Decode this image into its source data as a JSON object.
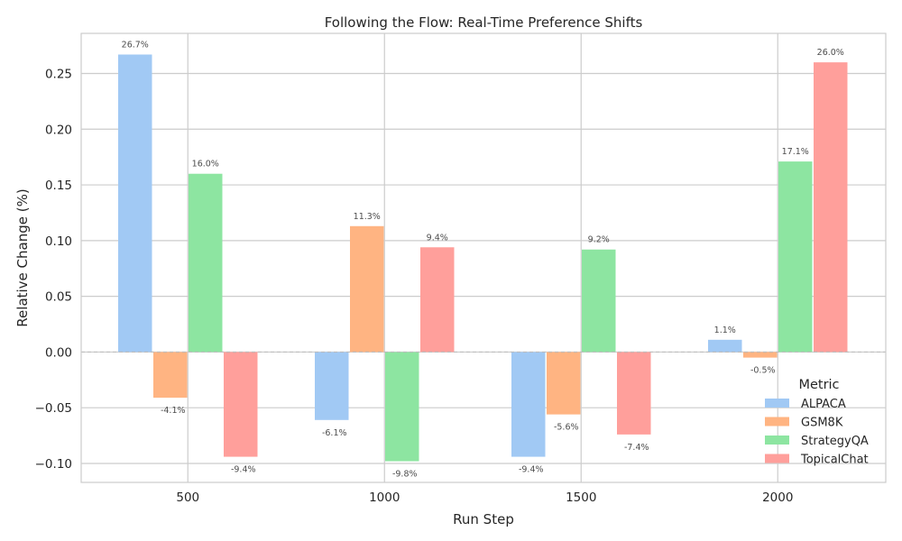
{
  "chart_data": {
    "type": "bar",
    "title": "Following the Flow: Real-Time Preference Shifts",
    "xlabel": "Run Step",
    "ylabel": "Relative Change (%)",
    "categories": [
      "500",
      "1000",
      "1500",
      "2000"
    ],
    "ylim": [
      -0.117,
      0.286
    ],
    "yticks": [
      -0.1,
      -0.05,
      0.0,
      0.05,
      0.1,
      0.15,
      0.2,
      0.25
    ],
    "ytick_labels": [
      "−0.10",
      "−0.05",
      "0.00",
      "0.05",
      "0.10",
      "0.15",
      "0.20",
      "0.25"
    ],
    "grid": true,
    "legend": {
      "title": "Metric",
      "position": "lower-right"
    },
    "series": [
      {
        "name": "ALPACA",
        "color": "#a1c9f4",
        "values": [
          0.267,
          -0.061,
          -0.094,
          0.011
        ],
        "labels": [
          "26.7%",
          "-6.1%",
          "-9.4%",
          "1.1%"
        ]
      },
      {
        "name": "GSM8K",
        "color": "#ffb482",
        "values": [
          -0.041,
          0.113,
          -0.056,
          -0.005
        ],
        "labels": [
          "-4.1%",
          "11.3%",
          "-5.6%",
          "-0.5%"
        ]
      },
      {
        "name": "StrategyQA",
        "color": "#8de5a1",
        "values": [
          0.16,
          -0.098,
          0.092,
          0.171
        ],
        "labels": [
          "16.0%",
          "-9.8%",
          "9.2%",
          "17.1%"
        ]
      },
      {
        "name": "TopicalChat",
        "color": "#ff9f9b",
        "values": [
          -0.094,
          0.094,
          -0.074,
          0.26
        ],
        "labels": [
          "-9.4%",
          "9.4%",
          "-7.4%",
          "26.0%"
        ]
      }
    ]
  }
}
